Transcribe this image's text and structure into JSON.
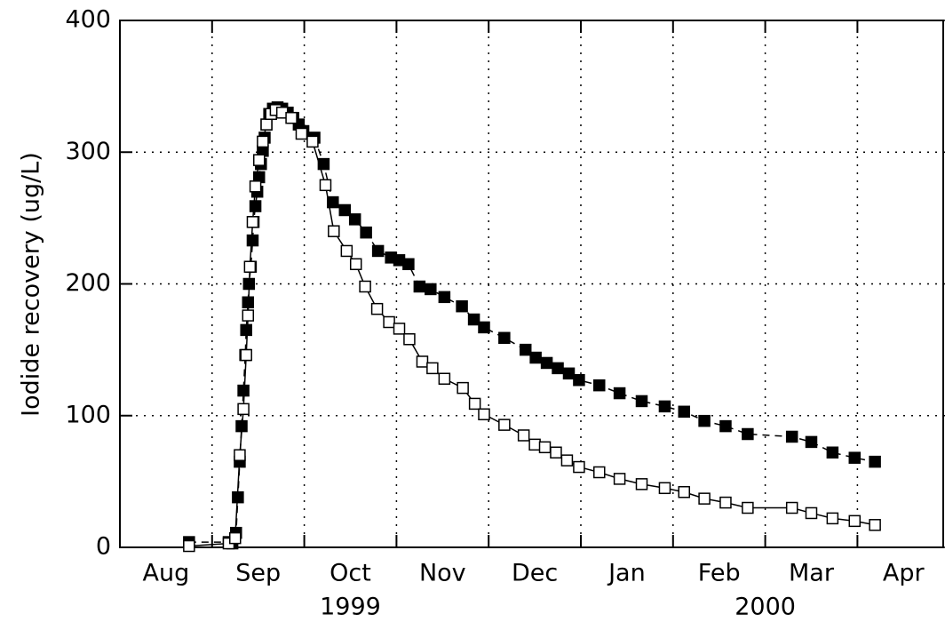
{
  "chart_data": {
    "type": "line",
    "ylabel": "Iodide recovery (ug/L)",
    "xlim": [
      0,
      8.95
    ],
    "xticks": [
      {
        "value": 0.5,
        "label": "Aug"
      },
      {
        "value": 1.5,
        "label": "Sep"
      },
      {
        "value": 2.5,
        "label": "Oct"
      },
      {
        "value": 3.5,
        "label": "Nov"
      },
      {
        "value": 4.5,
        "label": "Dec"
      },
      {
        "value": 5.5,
        "label": "Jan"
      },
      {
        "value": 6.5,
        "label": "Feb"
      },
      {
        "value": 7.5,
        "label": "Mar"
      },
      {
        "value": 8.5,
        "label": "Apr"
      }
    ],
    "xgrid": [
      1,
      2,
      3,
      4,
      5,
      6,
      7,
      8
    ],
    "year_labels": [
      {
        "value": 2.5,
        "label": "1999"
      },
      {
        "value": 7.0,
        "label": "2000"
      }
    ],
    "ylim": [
      0,
      400
    ],
    "yticks": [
      0,
      100,
      200,
      300,
      400
    ],
    "grid": true,
    "series": [
      {
        "color": "#000000",
        "marker": "filled-square",
        "line_style": "dashed",
        "x": [
          0.75,
          1.18,
          1.22,
          1.26,
          1.28,
          1.3,
          1.32,
          1.34,
          1.36,
          1.37,
          1.39,
          1.4,
          1.42,
          1.44,
          1.45,
          1.47,
          1.49,
          1.51,
          1.53,
          1.55,
          1.57,
          1.59,
          1.62,
          1.66,
          1.71,
          1.76,
          1.82,
          1.88,
          1.94,
          1.99,
          2.11,
          2.21,
          2.31,
          2.44,
          2.55,
          2.67,
          2.8,
          2.94,
          3.03,
          3.13,
          3.25,
          3.37,
          3.52,
          3.71,
          3.84,
          3.95,
          4.17,
          4.4,
          4.51,
          4.63,
          4.75,
          4.87,
          4.98,
          5.2,
          5.42,
          5.66,
          5.91,
          6.12,
          6.34,
          6.57,
          6.81,
          7.29,
          7.5,
          7.73,
          7.97,
          8.19
        ],
        "values": [
          4,
          4,
          3,
          11,
          38,
          65,
          92,
          119,
          146,
          165,
          186,
          200,
          213,
          233,
          247,
          259,
          270,
          281,
          291,
          301,
          311,
          321,
          329,
          333,
          334,
          333,
          330,
          326,
          321,
          316,
          311,
          291,
          262,
          256,
          249,
          239,
          225,
          220,
          218,
          215,
          198,
          196,
          190,
          183,
          173,
          167,
          159,
          150,
          144,
          140,
          136,
          132,
          127,
          123,
          117,
          111,
          107,
          103,
          96,
          92,
          86,
          84,
          80,
          72,
          68,
          65
        ]
      },
      {
        "color": "#000000",
        "marker": "open-square",
        "line_style": "solid",
        "x": [
          0.75,
          1.18,
          1.25,
          1.3,
          1.34,
          1.37,
          1.39,
          1.41,
          1.44,
          1.47,
          1.51,
          1.55,
          1.59,
          1.64,
          1.69,
          1.76,
          1.86,
          1.97,
          2.09,
          2.23,
          2.32,
          2.46,
          2.56,
          2.66,
          2.79,
          2.92,
          3.03,
          3.14,
          3.28,
          3.39,
          3.52,
          3.72,
          3.85,
          3.95,
          4.17,
          4.38,
          4.5,
          4.61,
          4.73,
          4.85,
          4.98,
          5.2,
          5.42,
          5.66,
          5.91,
          6.12,
          6.34,
          6.57,
          6.81,
          7.29,
          7.5,
          7.73,
          7.97,
          8.19
        ],
        "values": [
          1,
          3,
          7,
          70,
          105,
          146,
          176,
          213,
          247,
          274,
          294,
          308,
          321,
          329,
          332,
          330,
          326,
          314,
          308,
          275,
          240,
          225,
          215,
          198,
          181,
          171,
          166,
          158,
          141,
          136,
          128,
          121,
          109,
          101,
          93,
          85,
          78,
          76,
          72,
          66,
          61,
          57,
          52,
          48,
          45,
          42,
          37,
          34,
          30,
          30,
          26,
          22,
          20,
          17
        ]
      }
    ]
  }
}
